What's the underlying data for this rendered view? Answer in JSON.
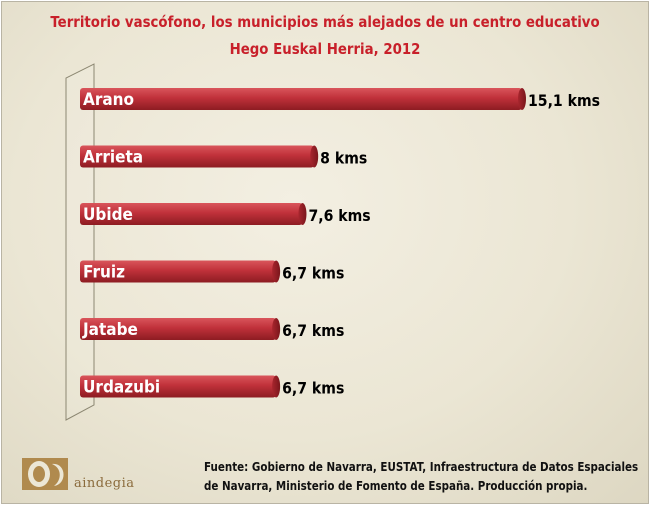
{
  "title_line1": "Territorio vascófono, los municipios más alejados de un centro educativo",
  "title_line2": "Hego Euskal Herria, 2012",
  "source_line1": "Fuente: Gobierno de Navarra, EUSTAT, Infraestructura de Datos Espaciales",
  "source_line2": "de Navarra, Ministerio de Fomento de España. Producción propia.",
  "logo_text": "aindegia",
  "colors": {
    "title": "#c8202a",
    "bar": "#c0313a",
    "bar_dark": "#8d1c22",
    "label": "#ffffff",
    "value": "#000000"
  },
  "chart_data": {
    "type": "bar",
    "orientation": "horizontal",
    "categories": [
      "Arano",
      "Arrieta",
      "Ubide",
      "Fruiz",
      "Jatabe",
      "Urdazubi"
    ],
    "values": [
      15.1,
      8,
      7.6,
      6.7,
      6.7,
      6.7
    ],
    "value_labels": [
      "15,1 kms",
      "8 kms",
      "7,6 kms",
      "6,7 kms",
      "6,7 kms",
      "6,7 kms"
    ],
    "title": "Territorio vascófono, los municipios más alejados de un centro educativo",
    "subtitle": "Hego Euskal Herria, 2012",
    "grid": false,
    "xlim": [
      0,
      15.1
    ]
  }
}
